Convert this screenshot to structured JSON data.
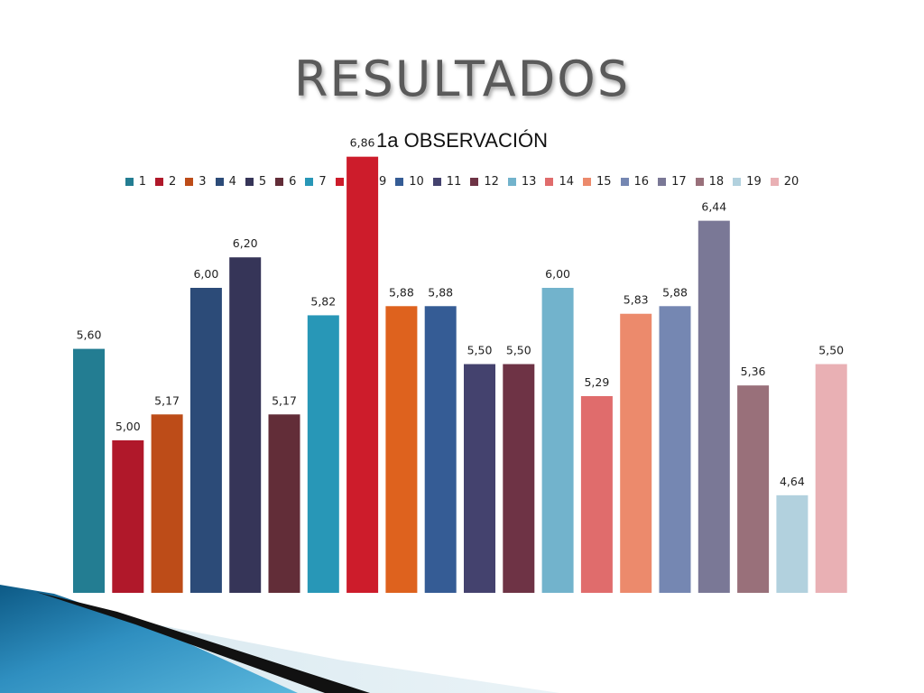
{
  "slide": {
    "title": "RESULTADOS"
  },
  "chart_data": {
    "type": "bar",
    "title": "1a OBSERVACIÓN",
    "xlabel": "",
    "ylabel": "",
    "legend_position": "top",
    "grid": false,
    "ylim": [
      4.0,
      7.0
    ],
    "categories": [
      "1",
      "2",
      "3",
      "4",
      "5",
      "6",
      "7",
      "8",
      "9",
      "10",
      "11",
      "12",
      "13",
      "14",
      "15",
      "16",
      "17",
      "18",
      "19",
      "20"
    ],
    "values": [
      5.6,
      5.0,
      5.17,
      6.0,
      6.2,
      5.17,
      5.82,
      6.86,
      5.88,
      5.88,
      5.5,
      5.5,
      6.0,
      5.29,
      5.83,
      5.88,
      6.44,
      5.36,
      4.64,
      5.5
    ],
    "value_labels": [
      "5,60",
      "5,00",
      "5,17",
      "6,00",
      "6,20",
      "5,17",
      "5,82",
      "6,86",
      "5,88",
      "5,88",
      "5,50",
      "5,50",
      "6,00",
      "5,29",
      "5,83",
      "5,88",
      "6,44",
      "5,36",
      "4,64",
      "5,50"
    ],
    "colors": [
      "#237d92",
      "#b0182a",
      "#bd4c18",
      "#2c4b78",
      "#363558",
      "#622d38",
      "#2897b7",
      "#cd1c2b",
      "#de621e",
      "#355c95",
      "#44426e",
      "#6e3345",
      "#72b3cc",
      "#e06c6c",
      "#ec8a6c",
      "#7587b2",
      "#7a7896",
      "#99707a",
      "#b2d1de",
      "#e9b0b4"
    ]
  }
}
